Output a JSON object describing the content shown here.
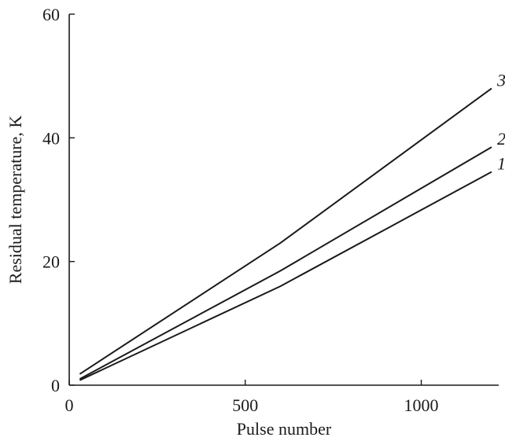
{
  "chart_data": {
    "type": "line",
    "xlabel": "Pulse number",
    "ylabel": "Residual temperature, K",
    "xlim": [
      0,
      1220
    ],
    "ylim": [
      0,
      60
    ],
    "xticks": [
      0,
      500,
      1000
    ],
    "yticks": [
      0,
      20,
      40,
      60
    ],
    "grid": false,
    "series": [
      {
        "name": "1",
        "x": [
          30,
          600,
          1200
        ],
        "y": [
          0.8,
          16,
          34.5
        ]
      },
      {
        "name": "2",
        "x": [
          30,
          600,
          1200
        ],
        "y": [
          1.0,
          18.5,
          38.5
        ]
      },
      {
        "name": "3",
        "x": [
          30,
          600,
          1200
        ],
        "y": [
          1.8,
          23,
          48
        ]
      }
    ]
  }
}
